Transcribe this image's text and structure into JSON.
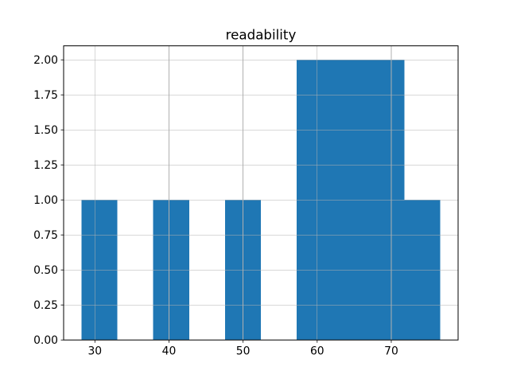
{
  "figure": {
    "background": "#ffffff"
  },
  "chart_data": {
    "type": "histogram",
    "title": "readability",
    "xlabel": "",
    "ylabel": "",
    "bar_color": "#1f77b4",
    "grid_color": "#b0b0b0",
    "axis_color": "#000000",
    "grid": true,
    "grid_above_bars": true,
    "legend": false,
    "bin_edges": [
      28.2,
      33.04,
      37.88,
      42.72,
      47.56,
      52.4,
      57.24,
      62.08,
      66.92,
      71.76,
      76.6
    ],
    "counts": [
      1,
      0,
      1,
      0,
      1,
      0,
      2,
      2,
      2,
      1
    ],
    "xlim": [
      25.78,
      79.02
    ],
    "ylim": [
      0,
      2.1
    ],
    "xticks": [
      30,
      40,
      50,
      60,
      70
    ],
    "yticks": [
      0.0,
      0.25,
      0.5,
      0.75,
      1.0,
      1.25,
      1.5,
      1.75,
      2.0
    ],
    "xtick_labels": [
      "30",
      "40",
      "50",
      "60",
      "70"
    ],
    "ytick_labels": [
      "0.00",
      "0.25",
      "0.50",
      "0.75",
      "1.00",
      "1.25",
      "1.50",
      "1.75",
      "2.00"
    ]
  }
}
